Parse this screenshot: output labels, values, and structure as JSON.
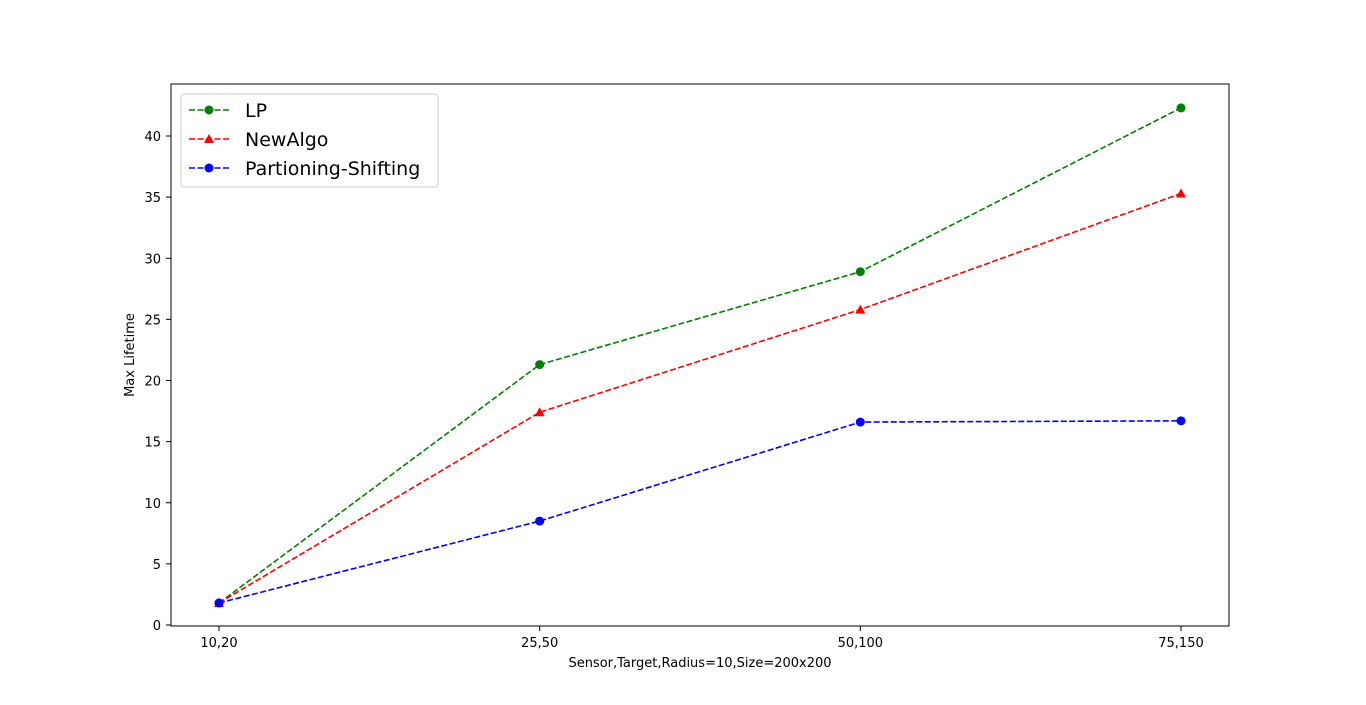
{
  "chart_data": {
    "type": "line",
    "title": "",
    "xlabel": "Sensor,Target,Radius=10,Size=200x200",
    "ylabel": "Max Lifetime",
    "categories": [
      "10,20",
      "25,50",
      "50,100",
      "75,150"
    ],
    "ylim": [
      0,
      44.3
    ],
    "yticks": [
      0,
      5,
      10,
      15,
      20,
      25,
      30,
      35,
      40
    ],
    "grid": false,
    "legend_position": "upper-left",
    "series": [
      {
        "name": "LP",
        "values": [
          1.8,
          21.3,
          28.9,
          42.3
        ],
        "color": "#008000",
        "marker": "circle",
        "line_style": "dashed"
      },
      {
        "name": "NewAlgo",
        "values": [
          1.8,
          17.4,
          25.8,
          35.3
        ],
        "color": "#ff0000",
        "marker": "triangle-up",
        "line_style": "dashed"
      },
      {
        "name": "Partioning-Shifting",
        "values": [
          1.8,
          8.5,
          16.6,
          16.7
        ],
        "color": "#0000ff",
        "marker": "circle",
        "line_style": "dashed"
      }
    ]
  }
}
